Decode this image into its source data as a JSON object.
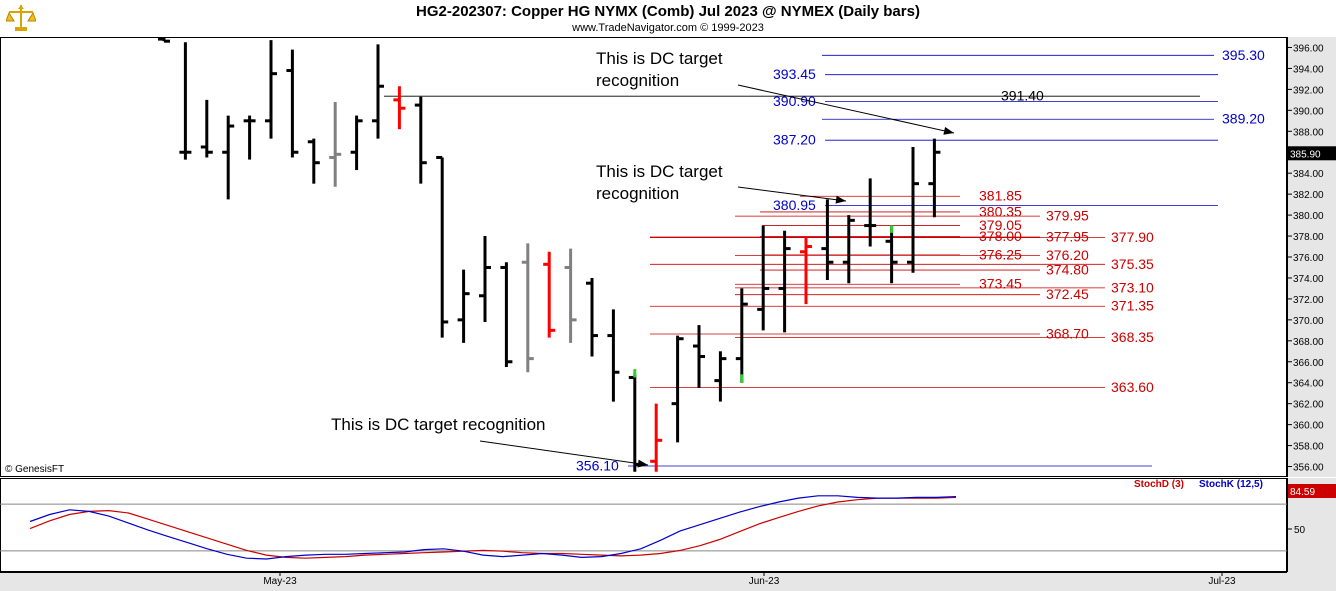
{
  "header": {
    "title": "HG2-202307:  Copper HG NYMX (Comb) Jul 2023 @ NYMEX  (Daily bars)",
    "subtitle": "www.TradeNavigator.com © 1999-2023",
    "watermark": "© GenesisFT"
  },
  "colors": {
    "bar": "#000000",
    "bar_down": "#ff0000",
    "bar_neutral": "#808080",
    "bar_up_marker": "#33cc33",
    "blue_level": "#0000cc",
    "red_level": "#cc0000",
    "stoch_d": "#cc0000",
    "stoch_k": "#0000cc"
  },
  "chart_data": [
    {
      "type": "ohlc",
      "y_axis": {
        "range": [
          355,
          397
        ],
        "ticks": [
          "396.00",
          "394.00",
          "392.00",
          "390.00",
          "388.00",
          "386.00",
          "384.00",
          "382.00",
          "380.00",
          "378.00",
          "376.00",
          "374.00",
          "372.00",
          "370.00",
          "368.00",
          "366.00",
          "364.00",
          "362.00",
          "360.00",
          "358.00",
          "356.00"
        ]
      },
      "x_axis": {
        "ticks": [
          "May-23",
          "Jun-23",
          "Jul-23"
        ]
      },
      "last_price": "385.90",
      "bars": [
        {
          "h": 397,
          "l": 396.6,
          "o": 396.8,
          "c": 396.6,
          "col": "bar"
        },
        {
          "h": 396.5,
          "l": 385.3,
          "o": 386,
          "c": 386,
          "col": "bar"
        },
        {
          "h": 391,
          "l": 385.5,
          "o": 386.5,
          "c": 386,
          "col": "bar"
        },
        {
          "h": 389.5,
          "l": 381.5,
          "o": 386,
          "c": 388.5,
          "col": "bar"
        },
        {
          "h": 389.5,
          "l": 385.3,
          "o": 389,
          "c": 389,
          "col": "bar"
        },
        {
          "h": 396.7,
          "l": 387.3,
          "o": 389,
          "c": 393.5,
          "col": "bar"
        },
        {
          "h": 395.8,
          "l": 385.5,
          "o": 393.8,
          "c": 386,
          "col": "bar"
        },
        {
          "h": 387.3,
          "l": 383,
          "o": 387,
          "c": 385,
          "col": "bar"
        },
        {
          "h": 390.8,
          "l": 382.7,
          "o": 385.5,
          "c": 385.8,
          "col": "bar_neutral"
        },
        {
          "h": 389.5,
          "l": 384.3,
          "o": 386,
          "c": 389,
          "col": "bar"
        },
        {
          "h": 396.3,
          "l": 387.3,
          "o": 389,
          "c": 392.3,
          "col": "bar"
        },
        {
          "h": 392.3,
          "l": 388.2,
          "o": 391,
          "c": 390.2,
          "col": "bar_down"
        },
        {
          "h": 391.3,
          "l": 383,
          "o": 390.5,
          "c": 385,
          "col": "bar"
        },
        {
          "h": 385.5,
          "l": 368.3,
          "o": 385.5,
          "c": 369.8,
          "col": "bar"
        },
        {
          "h": 374.8,
          "l": 367.8,
          "o": 370,
          "c": 372.5,
          "col": "bar"
        },
        {
          "h": 378,
          "l": 369.8,
          "o": 372.3,
          "c": 375,
          "col": "bar"
        },
        {
          "h": 375.5,
          "l": 365.5,
          "o": 375,
          "c": 366,
          "col": "bar"
        },
        {
          "h": 377.3,
          "l": 365,
          "o": 375.5,
          "c": 366.3,
          "col": "bar_neutral"
        },
        {
          "h": 376.5,
          "l": 368.3,
          "o": 375.3,
          "c": 369,
          "col": "bar_down"
        },
        {
          "h": 376.8,
          "l": 367.8,
          "o": 375,
          "c": 370,
          "col": "bar_neutral"
        },
        {
          "h": 374,
          "l": 366.5,
          "o": 373.5,
          "c": 368.5,
          "col": "bar"
        },
        {
          "h": 371,
          "l": 362.2,
          "o": 368.5,
          "c": 365,
          "col": "bar"
        },
        {
          "h": 364.8,
          "l": 355.5,
          "o": 364.5,
          "c": 356.2,
          "col": "bar",
          "up_marker": [
            364.5,
            365.3
          ]
        },
        {
          "h": 362,
          "l": 355.5,
          "o": 356.5,
          "c": 358.5,
          "col": "bar_down"
        },
        {
          "h": 368.5,
          "l": 358.3,
          "o": 362,
          "c": 368.2,
          "col": "bar"
        },
        {
          "h": 369.5,
          "l": 363.5,
          "o": 367.5,
          "c": 366.5,
          "col": "bar"
        },
        {
          "h": 367,
          "l": 362.2,
          "o": 364.2,
          "c": 366.3,
          "col": "bar"
        },
        {
          "h": 373,
          "l": 364,
          "o": 366.3,
          "c": 371.5,
          "col": "bar",
          "up_marker": [
            364,
            364.8
          ]
        },
        {
          "h": 379,
          "l": 369,
          "o": 371,
          "c": 373,
          "col": "bar"
        },
        {
          "h": 378.5,
          "l": 368.8,
          "o": 373,
          "c": 376.8,
          "col": "bar"
        },
        {
          "h": 378,
          "l": 371.5,
          "o": 376.5,
          "c": 377,
          "col": "bar_down"
        },
        {
          "h": 381.5,
          "l": 373.8,
          "o": 376.8,
          "c": 375.5,
          "col": "bar"
        },
        {
          "h": 380,
          "l": 373.5,
          "o": 375.5,
          "c": 379.5,
          "col": "bar"
        },
        {
          "h": 383.5,
          "l": 377,
          "o": 379,
          "c": 379,
          "col": "bar"
        },
        {
          "h": 379,
          "l": 373.5,
          "o": 377.5,
          "c": 375.5,
          "col": "bar",
          "up_marker": [
            378.3,
            379
          ]
        },
        {
          "h": 386.5,
          "l": 374.5,
          "o": 375.5,
          "c": 383,
          "col": "bar"
        },
        {
          "h": 387.3,
          "l": 379.8,
          "o": 383,
          "c": 386,
          "col": "bar"
        }
      ],
      "levels": [
        {
          "value": 395.3,
          "label": "395.30",
          "color": "blue_level"
        },
        {
          "value": 393.45,
          "label": "393.45",
          "color": "blue_level"
        },
        {
          "value": 391.4,
          "label": "391.40",
          "color": "bar"
        },
        {
          "value": 390.9,
          "label": "390.90",
          "color": "blue_level"
        },
        {
          "value": 389.2,
          "label": "389.20",
          "color": "blue_level"
        },
        {
          "value": 387.2,
          "label": "387.20",
          "color": "blue_level"
        },
        {
          "value": 381.85,
          "label": "381.85",
          "color": "red_level"
        },
        {
          "value": 380.95,
          "label": "380.95",
          "color": "blue_level"
        },
        {
          "value": 380.35,
          "label": "380.35",
          "color": "red_level"
        },
        {
          "value": 379.95,
          "label": "379.95",
          "color": "red_level"
        },
        {
          "value": 379.05,
          "label": "379.05",
          "color": "red_level"
        },
        {
          "value": 378.0,
          "label": "378.00",
          "color": "red_level"
        },
        {
          "value": 377.95,
          "label": "377.95",
          "color": "red_level"
        },
        {
          "value": 377.9,
          "label": "377.90",
          "color": "red_level"
        },
        {
          "value": 376.25,
          "label": "376.25",
          "color": "red_level"
        },
        {
          "value": 376.2,
          "label": "376.20",
          "color": "red_level"
        },
        {
          "value": 375.35,
          "label": "375.35",
          "color": "red_level"
        },
        {
          "value": 374.8,
          "label": "374.80",
          "color": "red_level"
        },
        {
          "value": 373.45,
          "label": "373.45",
          "color": "red_level"
        },
        {
          "value": 373.1,
          "label": "373.10",
          "color": "red_level"
        },
        {
          "value": 372.45,
          "label": "372.45",
          "color": "red_level"
        },
        {
          "value": 371.35,
          "label": "371.35",
          "color": "red_level"
        },
        {
          "value": 368.7,
          "label": "368.70",
          "color": "red_level"
        },
        {
          "value": 368.35,
          "label": "368.35",
          "color": "red_level"
        },
        {
          "value": 363.6,
          "label": "363.60",
          "color": "red_level"
        },
        {
          "value": 356.1,
          "label": "356.10",
          "color": "blue_level"
        }
      ],
      "annotations": [
        {
          "lines": [
            "This is DC target",
            "recognition"
          ]
        },
        {
          "lines": [
            "This is DC target",
            "recognition"
          ]
        },
        {
          "lines": [
            "This is DC target recognition"
          ]
        }
      ]
    },
    {
      "type": "line",
      "legend": [
        "StochD (3)",
        "StochK (12,5)"
      ],
      "y_ticks": [
        "50"
      ],
      "last_value": "84.59",
      "series": [
        {
          "name": "StochD (3)",
          "color": "stoch_d",
          "values": [
            48,
            58,
            66,
            70,
            71,
            68,
            60,
            52,
            44,
            36,
            28,
            20,
            14,
            11,
            10,
            11,
            12,
            14,
            15,
            16,
            17,
            18,
            19,
            20,
            19,
            17,
            16,
            16,
            15,
            14,
            13,
            14,
            16,
            20,
            26,
            34,
            44,
            54,
            62,
            70,
            77,
            82,
            85,
            87,
            87,
            87,
            87,
            88
          ]
        },
        {
          "name": "StochK (12,5)",
          "color": "stoch_k",
          "values": [
            57,
            66,
            72,
            70,
            64,
            55,
            46,
            38,
            30,
            22,
            15,
            10,
            9,
            12,
            14,
            15,
            15,
            16,
            17,
            18,
            21,
            22,
            19,
            14,
            12,
            14,
            16,
            14,
            11,
            12,
            16,
            22,
            33,
            45,
            53,
            61,
            69,
            76,
            82,
            87,
            90,
            90,
            88,
            87,
            87,
            88,
            88,
            89
          ]
        }
      ]
    }
  ]
}
